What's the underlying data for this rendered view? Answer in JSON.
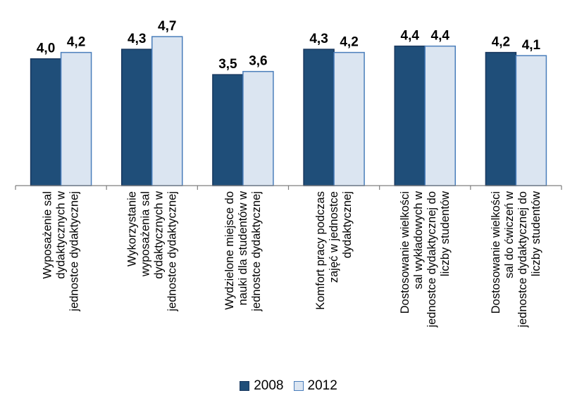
{
  "chart_data": {
    "type": "bar",
    "categories": [
      [
        "Wyposażenie sal",
        "dydaktycznych w",
        "jednostce dydaktycznej"
      ],
      [
        "Wykorzystanie",
        "wyposażenia sal",
        "dydaktycznych w",
        "jednostce dydaktycznej"
      ],
      [
        "Wydzielone miejsce do",
        "nauki dla studentów w",
        "jednostce dydaktycznej"
      ],
      [
        "Komfort pracy podczas",
        "zajęć w jednostce",
        "dydaktycznej"
      ],
      [
        "Dostosowanie wielkości",
        "sal wykładowych w",
        "jednostce dydaktycznej do",
        "liczby studentów"
      ],
      [
        "Dostosowanie wielkości",
        "sal do ćwiczeń w",
        "jednostce dydaktycznej do",
        "liczby studentów"
      ]
    ],
    "series": [
      {
        "name": "2008",
        "values": [
          4.0,
          4.3,
          3.5,
          4.3,
          4.4,
          4.2
        ],
        "labels": [
          "4,0",
          "4,3",
          "3,5",
          "4,3",
          "4,4",
          "4,2"
        ],
        "fill": "#1f4e79",
        "stroke": "#17375e"
      },
      {
        "name": "2012",
        "values": [
          4.2,
          4.7,
          3.6,
          4.2,
          4.4,
          4.1
        ],
        "labels": [
          "4,2",
          "4,7",
          "3,6",
          "4,2",
          "4,4",
          "4,1"
        ],
        "fill": "#dbe5f1",
        "stroke": "#4a7ebb"
      }
    ],
    "ylim": [
      0,
      5.5
    ],
    "grid": false,
    "legend_position": "bottom",
    "axis_color": "#7f7f7f"
  }
}
